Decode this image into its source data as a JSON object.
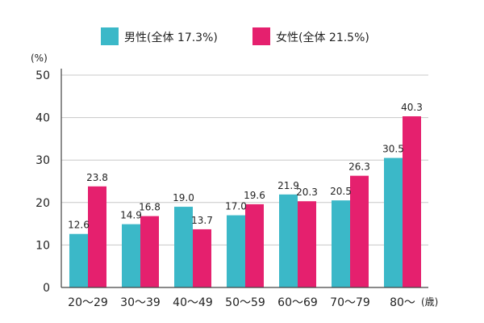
{
  "chart_data": {
    "type": "bar",
    "title": "",
    "y_unit": "(%)",
    "x_unit": "(歳)",
    "categories": [
      "20〜29",
      "30〜39",
      "40〜49",
      "50〜59",
      "60〜69",
      "70〜79",
      "80〜"
    ],
    "series": [
      {
        "name": "男性(全体 17.3%)",
        "color": "#3bb8c8",
        "values": [
          12.6,
          14.9,
          19.0,
          17.0,
          21.9,
          20.5,
          30.5
        ]
      },
      {
        "name": "女性(全体 21.5%)",
        "color": "#e5206e",
        "values": [
          23.8,
          16.8,
          13.7,
          19.6,
          20.3,
          26.3,
          40.3
        ]
      }
    ],
    "value_labels": [
      [
        "12.6",
        "14.9",
        "19.0",
        "17.0",
        "21.9",
        "20.5",
        "30.5"
      ],
      [
        "23.8",
        "16.8",
        "13.7",
        "19.6",
        "20.3",
        "26.3",
        "40.3"
      ]
    ],
    "ylim": [
      0,
      50
    ],
    "yticks": [
      0,
      10,
      20,
      30,
      40,
      50
    ],
    "grid": true,
    "legend_position": "top-center"
  }
}
